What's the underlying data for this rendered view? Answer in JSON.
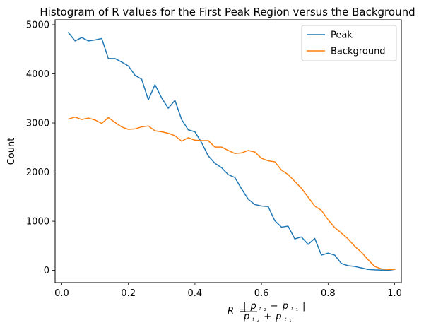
{
  "chart_data": {
    "type": "line",
    "title": "Histogram of R values for the First Peak Region versus the Background",
    "ylabel": "Count",
    "xlabel": {
      "lhs": "R",
      "eq": "=",
      "abs_bar": "|",
      "p": "p",
      "sub_t2": "t",
      "sub_sub_2": "2",
      "sub_t1": "t",
      "sub_sub_1": "1",
      "minus": "−",
      "plus": "+"
    },
    "xlim": [
      -0.02,
      1.02
    ],
    "ylim": [
      -250,
      5100
    ],
    "xticks": [
      0.0,
      0.2,
      0.4,
      0.6,
      0.8,
      1.0
    ],
    "xtick_labels": [
      "0.0",
      "0.2",
      "0.4",
      "0.6",
      "0.8",
      "1.0"
    ],
    "yticks": [
      0,
      1000,
      2000,
      3000,
      4000,
      5000
    ],
    "ytick_labels": [
      "0",
      "1000",
      "2000",
      "3000",
      "4000",
      "5000"
    ],
    "legend_position": "upper right",
    "x": [
      0.02,
      0.04,
      0.06,
      0.08,
      0.1,
      0.12,
      0.14,
      0.16,
      0.18,
      0.2,
      0.22,
      0.24,
      0.26,
      0.28,
      0.3,
      0.32,
      0.34,
      0.36,
      0.38,
      0.4,
      0.42,
      0.44,
      0.46,
      0.48,
      0.5,
      0.52,
      0.54,
      0.56,
      0.58,
      0.6,
      0.62,
      0.64,
      0.66,
      0.68,
      0.7,
      0.72,
      0.74,
      0.76,
      0.78,
      0.8,
      0.82,
      0.84,
      0.86,
      0.88,
      0.9,
      0.92,
      0.94,
      0.96,
      0.98,
      1.0
    ],
    "series": [
      {
        "name": "Peak",
        "color": "#1f77b4",
        "values": [
          4840,
          4670,
          4740,
          4670,
          4690,
          4720,
          4310,
          4310,
          4240,
          4160,
          3970,
          3890,
          3470,
          3780,
          3510,
          3300,
          3460,
          3070,
          2860,
          2820,
          2600,
          2330,
          2180,
          2090,
          1950,
          1890,
          1660,
          1450,
          1340,
          1310,
          1300,
          1010,
          880,
          900,
          640,
          680,
          530,
          650,
          310,
          350,
          310,
          140,
          95,
          80,
          50,
          20,
          10,
          5,
          0,
          20
        ]
      },
      {
        "name": "Background",
        "color": "#ff7f0e",
        "values": [
          3080,
          3120,
          3070,
          3100,
          3060,
          2990,
          3110,
          3010,
          2920,
          2870,
          2880,
          2920,
          2940,
          2840,
          2820,
          2790,
          2740,
          2630,
          2700,
          2650,
          2640,
          2640,
          2510,
          2510,
          2440,
          2380,
          2390,
          2440,
          2410,
          2280,
          2230,
          2210,
          2040,
          1950,
          1810,
          1670,
          1490,
          1310,
          1220,
          1030,
          870,
          760,
          640,
          490,
          370,
          220,
          80,
          30,
          20,
          20
        ]
      }
    ]
  }
}
